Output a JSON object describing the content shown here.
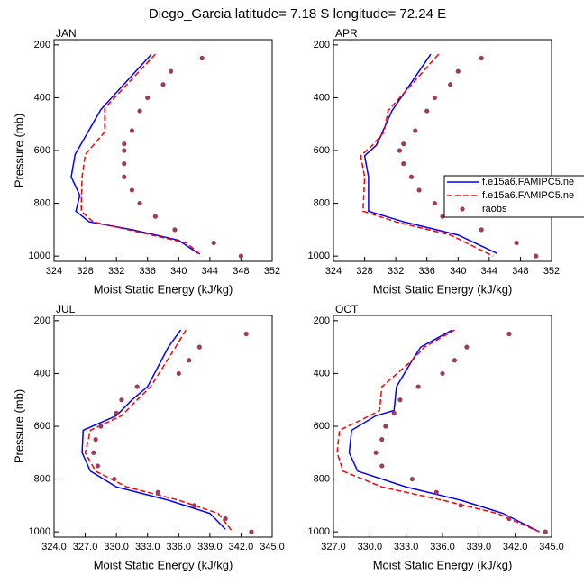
{
  "title": "Diego_Garcia  latitude= 7.18 S longitude= 72.24 E",
  "chart_data": [
    {
      "type": "line",
      "title": "JAN",
      "xlabel": "Moist Static Energy (kJ/kg)",
      "ylabel": "Pressure (mb)",
      "xlim": [
        324,
        352
      ],
      "xticks": [
        324,
        328,
        332,
        336,
        340,
        344,
        348,
        352
      ],
      "ylim": [
        180,
        1020
      ],
      "yticks": [
        200,
        400,
        600,
        800,
        1000
      ],
      "y_inverted": true,
      "series": [
        {
          "name": "f.e15a6.FAMIPC5.ne",
          "color": "#0000ff",
          "style": "solid",
          "x": [
            336.5,
            330,
            326.7,
            326.2,
            327.3,
            326.8,
            328.5,
            334,
            340,
            342.5
          ],
          "y": [
            235,
            445,
            615,
            700,
            770,
            830,
            870,
            900,
            940,
            990
          ]
        },
        {
          "name": "f.e15a6.FAMIPC5.ne",
          "color": "#ff0000",
          "style": "dashed",
          "x": [
            337,
            330.5,
            330.5,
            328,
            327.6,
            327.5,
            327.5,
            329,
            335,
            341,
            343
          ],
          "y": [
            235,
            440,
            530,
            615,
            700,
            800,
            830,
            870,
            910,
            950,
            1000
          ]
        },
        {
          "name": "raobs",
          "color": "#a3395f",
          "style": "markers",
          "x": [
            343,
            339,
            338,
            336,
            335,
            334,
            333,
            333,
            333,
            333,
            334,
            335,
            337,
            339.5,
            344.5,
            348
          ],
          "y": [
            250,
            300,
            350,
            400,
            450,
            525,
            575,
            600,
            650,
            700,
            750,
            800,
            850,
            900,
            950,
            1000
          ]
        }
      ]
    },
    {
      "type": "line",
      "title": "APR",
      "xlabel": "Moist Static Energy (kJ/kg)",
      "xlim": [
        324,
        352
      ],
      "xticks": [
        324,
        328,
        332,
        336,
        340,
        344,
        348,
        352
      ],
      "ylim": [
        180,
        1020
      ],
      "yticks": [
        200,
        400,
        600,
        800,
        1000
      ],
      "y_inverted": true,
      "legend": "right",
      "series": [
        {
          "name": "f.e15a6.FAMIPC5.ne",
          "color": "#0000ff",
          "style": "solid",
          "x": [
            336.5,
            331.5,
            330,
            329.5,
            328,
            328.5,
            328.5,
            333,
            340,
            345
          ],
          "y": [
            235,
            450,
            550,
            580,
            620,
            700,
            830,
            870,
            920,
            990
          ]
        },
        {
          "name": "f.e15a6.FAMIPC5.ne",
          "color": "#ff0000",
          "style": "dashed",
          "x": [
            337.5,
            331,
            330.5,
            329,
            327.5,
            328,
            327.8,
            332,
            339,
            344.5
          ],
          "y": [
            235,
            450,
            530,
            580,
            620,
            700,
            830,
            870,
            920,
            1000
          ]
        },
        {
          "name": "raobs",
          "color": "#a3395f",
          "style": "markers",
          "x": [
            343,
            340,
            339,
            337,
            336,
            334.5,
            333,
            332.5,
            333,
            334,
            335,
            337,
            338,
            343,
            347.5,
            350
          ],
          "y": [
            250,
            300,
            350,
            400,
            450,
            525,
            575,
            600,
            650,
            700,
            750,
            800,
            850,
            900,
            950,
            1000
          ]
        }
      ]
    },
    {
      "type": "line",
      "title": "JUL",
      "xlabel": "Moist Static Energy (kJ/kg)",
      "ylabel": "Pressure (mb)",
      "xlim": [
        324,
        345
      ],
      "xticks": [
        {
          "value": 324,
          "label": "324.0"
        },
        {
          "value": 327,
          "label": "327.0"
        },
        {
          "value": 330,
          "label": "330.0"
        },
        {
          "value": 333,
          "label": "333.0"
        },
        {
          "value": 336,
          "label": "336.0"
        },
        {
          "value": 339,
          "label": "339.0"
        },
        {
          "value": 342,
          "label": "342.0"
        },
        {
          "value": 345,
          "label": "345.0"
        }
      ],
      "ylim": [
        180,
        1020
      ],
      "yticks": [
        200,
        400,
        600,
        800,
        1000
      ],
      "y_inverted": true,
      "series": [
        {
          "name": "f.e15a6.FAMIPC5.ne",
          "color": "#0000ff",
          "style": "solid",
          "x": [
            336.2,
            335,
            333,
            331.5,
            330,
            326.8,
            326.7,
            327.5,
            330,
            335,
            339,
            340.5
          ],
          "y": [
            235,
            300,
            450,
            500,
            560,
            615,
            700,
            770,
            830,
            880,
            930,
            990
          ]
        },
        {
          "name": "f.e15a6.FAMIPC5.ne",
          "color": "#ff0000",
          "style": "dashed",
          "x": [
            336.7,
            335.7,
            333.3,
            332,
            330.5,
            327.5,
            327,
            328,
            331,
            336,
            339.8,
            341.2
          ],
          "y": [
            235,
            300,
            450,
            500,
            560,
            615,
            700,
            770,
            830,
            880,
            930,
            1000
          ]
        },
        {
          "name": "raobs",
          "color": "#a3395f",
          "style": "markers",
          "x": [
            342.5,
            338,
            337,
            336,
            332,
            330.5,
            330,
            328.5,
            328,
            327.8,
            328.2,
            329.8,
            334,
            337.5,
            340.5,
            343
          ],
          "y": [
            250,
            300,
            350,
            400,
            450,
            500,
            550,
            600,
            650,
            700,
            750,
            800,
            850,
            900,
            950,
            1000
          ]
        }
      ]
    },
    {
      "type": "line",
      "title": "OCT",
      "xlabel": "Moist Static Energy (kJ/kg)",
      "xlim": [
        327,
        345
      ],
      "xticks": [
        {
          "value": 327,
          "label": "327.0"
        },
        {
          "value": 330,
          "label": "330.0"
        },
        {
          "value": 333,
          "label": "333.0"
        },
        {
          "value": 336,
          "label": "336.0"
        },
        {
          "value": 339,
          "label": "339.0"
        },
        {
          "value": 342,
          "label": "342.0"
        },
        {
          "value": 345,
          "label": "345.0"
        }
      ],
      "ylim": [
        180,
        1020
      ],
      "yticks": [
        200,
        400,
        600,
        800,
        1000
      ],
      "y_inverted": true,
      "series": [
        {
          "name": "f.e15a6.FAMIPC5.ne",
          "color": "#0000ff",
          "style": "solid",
          "x": [
            336.8,
            334.2,
            333.5,
            332.2,
            332,
            330.5,
            328.5,
            328.3,
            329,
            333,
            337.5,
            341,
            344
          ],
          "y": [
            235,
            300,
            350,
            450,
            540,
            560,
            615,
            700,
            770,
            830,
            880,
            930,
            1000
          ]
        },
        {
          "name": "f.e15a6.FAMIPC5.ne",
          "color": "#ff0000",
          "style": "dashed",
          "x": [
            337,
            334.5,
            333.5,
            331,
            330.8,
            330,
            327.5,
            327.3,
            327.8,
            331,
            336,
            340.5,
            344
          ],
          "y": [
            235,
            300,
            350,
            450,
            540,
            560,
            615,
            700,
            770,
            830,
            880,
            930,
            1000
          ]
        },
        {
          "name": "raobs",
          "color": "#a3395f",
          "style": "markers",
          "x": [
            341.5,
            338,
            337,
            336,
            334,
            332.5,
            332,
            331.3,
            331,
            330.5,
            331,
            333.5,
            335.5,
            337.5,
            341.5,
            344.5
          ],
          "y": [
            250,
            300,
            350,
            400,
            450,
            500,
            550,
            600,
            650,
            700,
            750,
            800,
            850,
            900,
            950,
            1000
          ]
        }
      ]
    }
  ]
}
